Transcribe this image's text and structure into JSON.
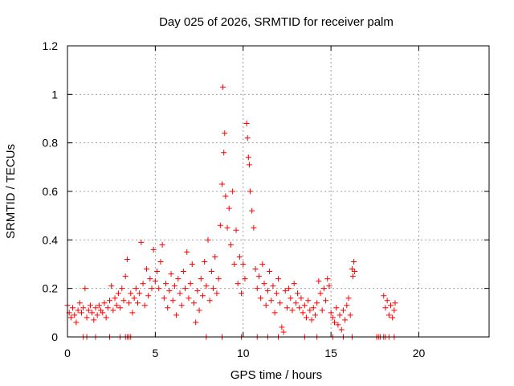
{
  "chart_data": {
    "type": "scatter",
    "title": "Day 025 of 2026, SRMTID for receiver palm",
    "xlabel": "GPS time / hours",
    "ylabel": "SRMTID / TECUs",
    "xlim": [
      0,
      24
    ],
    "ylim": [
      0,
      1.2
    ],
    "xticks": [
      0,
      5,
      10,
      15,
      20
    ],
    "yticks": [
      0,
      0.2,
      0.4,
      0.6,
      0.8,
      1,
      1.2
    ],
    "xtick_labels": [
      "0",
      "5",
      "10",
      "15",
      "20"
    ],
    "ytick_labels": [
      "0",
      "0.2",
      "0.4",
      "0.6",
      "0.8",
      "1",
      "1.2"
    ],
    "grid": true,
    "marker": "+",
    "color": "#ff0000",
    "series": [
      {
        "name": "SRMTID",
        "points": [
          [
            0.0,
            0.13
          ],
          [
            0.1,
            0.1
          ],
          [
            0.2,
            0.08
          ],
          [
            0.3,
            0.12
          ],
          [
            0.4,
            0.09
          ],
          [
            0.5,
            0.06
          ],
          [
            0.6,
            0.11
          ],
          [
            0.7,
            0.14
          ],
          [
            0.8,
            0.1
          ],
          [
            0.9,
            0.12
          ],
          [
            1.0,
            0.2
          ],
          [
            1.1,
            0.08
          ],
          [
            1.2,
            0.11
          ],
          [
            1.3,
            0.13
          ],
          [
            1.4,
            0.1
          ],
          [
            1.5,
            0.07
          ],
          [
            1.6,
            0.12
          ],
          [
            1.7,
            0.09
          ],
          [
            1.8,
            0.13
          ],
          [
            1.9,
            0.11
          ],
          [
            2.0,
            0.1
          ],
          [
            2.1,
            0.14
          ],
          [
            2.2,
            0.08
          ],
          [
            2.3,
            0.12
          ],
          [
            2.4,
            0.15
          ],
          [
            2.5,
            0.21
          ],
          [
            2.6,
            0.11
          ],
          [
            2.7,
            0.16
          ],
          [
            2.8,
            0.13
          ],
          [
            2.9,
            0.18
          ],
          [
            3.0,
            0.12
          ],
          [
            3.1,
            0.2
          ],
          [
            3.2,
            0.15
          ],
          [
            3.3,
            0.25
          ],
          [
            3.4,
            0.32
          ],
          [
            3.5,
            0.14
          ],
          [
            3.6,
            0.18
          ],
          [
            3.7,
            0.1
          ],
          [
            3.8,
            0.16
          ],
          [
            3.9,
            0.2
          ],
          [
            4.0,
            0.14
          ],
          [
            4.1,
            0.18
          ],
          [
            4.2,
            0.39
          ],
          [
            4.3,
            0.22
          ],
          [
            4.4,
            0.13
          ],
          [
            4.5,
            0.28
          ],
          [
            4.6,
            0.17
          ],
          [
            4.7,
            0.24
          ],
          [
            4.8,
            0.2
          ],
          [
            4.9,
            0.36
          ],
          [
            5.0,
            0.23
          ],
          [
            5.1,
            0.27
          ],
          [
            5.2,
            0.2
          ],
          [
            5.3,
            0.31
          ],
          [
            5.4,
            0.38
          ],
          [
            5.5,
            0.16
          ],
          [
            5.6,
            0.22
          ],
          [
            5.7,
            0.12
          ],
          [
            5.8,
            0.19
          ],
          [
            5.9,
            0.26
          ],
          [
            6.0,
            0.15
          ],
          [
            6.1,
            0.21
          ],
          [
            6.2,
            0.09
          ],
          [
            6.3,
            0.24
          ],
          [
            6.4,
            0.18
          ],
          [
            6.5,
            0.13
          ],
          [
            6.6,
            0.27
          ],
          [
            6.7,
            0.2
          ],
          [
            6.8,
            0.35
          ],
          [
            6.9,
            0.16
          ],
          [
            7.0,
            0.22
          ],
          [
            7.1,
            0.3
          ],
          [
            7.2,
            0.14
          ],
          [
            7.3,
            0.06
          ],
          [
            7.4,
            0.19
          ],
          [
            7.5,
            0.11
          ],
          [
            7.6,
            0.24
          ],
          [
            7.7,
            0.17
          ],
          [
            7.8,
            0.31
          ],
          [
            7.9,
            0.21
          ],
          [
            8.0,
            0.4
          ],
          [
            8.1,
            0.15
          ],
          [
            8.2,
            0.27
          ],
          [
            8.3,
            0.2
          ],
          [
            8.4,
            0.33
          ],
          [
            8.5,
            0.18
          ],
          [
            8.6,
            0.24
          ],
          [
            8.7,
            0.46
          ],
          [
            8.8,
            0.63
          ],
          [
            8.85,
            1.03
          ],
          [
            8.9,
            0.76
          ],
          [
            8.95,
            0.84
          ],
          [
            9.0,
            0.58
          ],
          [
            9.1,
            0.45
          ],
          [
            9.2,
            0.53
          ],
          [
            9.3,
            0.38
          ],
          [
            9.4,
            0.6
          ],
          [
            9.5,
            0.3
          ],
          [
            9.6,
            0.44
          ],
          [
            9.7,
            0.22
          ],
          [
            9.8,
            0.33
          ],
          [
            9.9,
            0.18
          ],
          [
            10.0,
            0.3
          ],
          [
            10.1,
            0.24
          ],
          [
            10.2,
            0.88
          ],
          [
            10.25,
            0.82
          ],
          [
            10.3,
            0.74
          ],
          [
            10.35,
            0.71
          ],
          [
            10.4,
            0.6
          ],
          [
            10.5,
            0.52
          ],
          [
            10.6,
            0.45
          ],
          [
            10.7,
            0.28
          ],
          [
            10.8,
            0.2
          ],
          [
            10.9,
            0.25
          ],
          [
            11.0,
            0.16
          ],
          [
            11.1,
            0.3
          ],
          [
            11.2,
            0.22
          ],
          [
            11.3,
            0.13
          ],
          [
            11.4,
            0.19
          ],
          [
            11.5,
            0.27
          ],
          [
            11.6,
            0.15
          ],
          [
            11.7,
            0.21
          ],
          [
            11.8,
            0.1
          ],
          [
            11.9,
            0.18
          ],
          [
            12.0,
            0.24
          ],
          [
            12.1,
            0.14
          ],
          [
            12.2,
            0.04
          ],
          [
            12.3,
            0.02
          ],
          [
            12.4,
            0.19
          ],
          [
            12.5,
            0.12
          ],
          [
            12.6,
            0.2
          ],
          [
            12.7,
            0.16
          ],
          [
            12.8,
            0.11
          ],
          [
            12.9,
            0.22
          ],
          [
            13.0,
            0.14
          ],
          [
            13.1,
            0.18
          ],
          [
            13.2,
            0.12
          ],
          [
            13.3,
            0.16
          ],
          [
            13.4,
            0.1
          ],
          [
            13.5,
            0.13
          ],
          [
            13.6,
            0.08
          ],
          [
            13.7,
            0.15
          ],
          [
            13.8,
            0.11
          ],
          [
            13.9,
            0.07
          ],
          [
            14.0,
            0.12
          ],
          [
            14.1,
            0.09
          ],
          [
            14.2,
            0.14
          ],
          [
            14.3,
            0.23
          ],
          [
            14.4,
            0.18
          ],
          [
            14.5,
            0.11
          ],
          [
            14.6,
            0.2
          ],
          [
            14.7,
            0.15
          ],
          [
            14.8,
            0.24
          ],
          [
            14.9,
            0.21
          ],
          [
            15.0,
            0.1
          ],
          [
            15.1,
            0.08
          ],
          [
            15.2,
            0.06
          ],
          [
            15.3,
            0.12
          ],
          [
            15.4,
            0.05
          ],
          [
            15.5,
            0.09
          ],
          [
            15.6,
            0.03
          ],
          [
            15.7,
            0.11
          ],
          [
            15.8,
            0.07
          ],
          [
            15.9,
            0.13
          ],
          [
            16.0,
            0.16
          ],
          [
            16.1,
            0.09
          ],
          [
            16.2,
            0.28
          ],
          [
            16.25,
            0.25
          ],
          [
            16.3,
            0.31
          ],
          [
            16.35,
            0.27
          ],
          [
            18.0,
            0.17
          ],
          [
            18.1,
            0.12
          ],
          [
            18.2,
            0.15
          ],
          [
            18.3,
            0.09
          ],
          [
            18.4,
            0.13
          ],
          [
            18.5,
            0.08
          ],
          [
            18.6,
            0.11
          ],
          [
            18.65,
            0.14
          ],
          [
            0.9,
            0.0
          ],
          [
            1.1,
            0.0
          ],
          [
            1.6,
            0.0
          ],
          [
            2.4,
            0.0
          ],
          [
            3.0,
            0.0
          ],
          [
            3.3,
            0.0
          ],
          [
            3.4,
            0.0
          ],
          [
            3.5,
            0.0
          ],
          [
            3.6,
            0.0
          ],
          [
            7.9,
            0.0
          ],
          [
            8.8,
            0.0
          ],
          [
            9.9,
            0.0
          ],
          [
            10.8,
            0.0
          ],
          [
            11.4,
            0.0
          ],
          [
            12.0,
            0.0
          ],
          [
            13.5,
            0.0
          ],
          [
            14.2,
            0.0
          ],
          [
            15.1,
            0.0
          ],
          [
            15.7,
            0.0
          ],
          [
            16.2,
            0.0
          ],
          [
            17.6,
            0.0
          ],
          [
            17.7,
            0.0
          ],
          [
            17.8,
            0.0
          ],
          [
            18.0,
            0.0
          ],
          [
            18.1,
            0.0
          ],
          [
            18.3,
            0.0
          ],
          [
            18.6,
            0.0
          ]
        ]
      }
    ]
  }
}
